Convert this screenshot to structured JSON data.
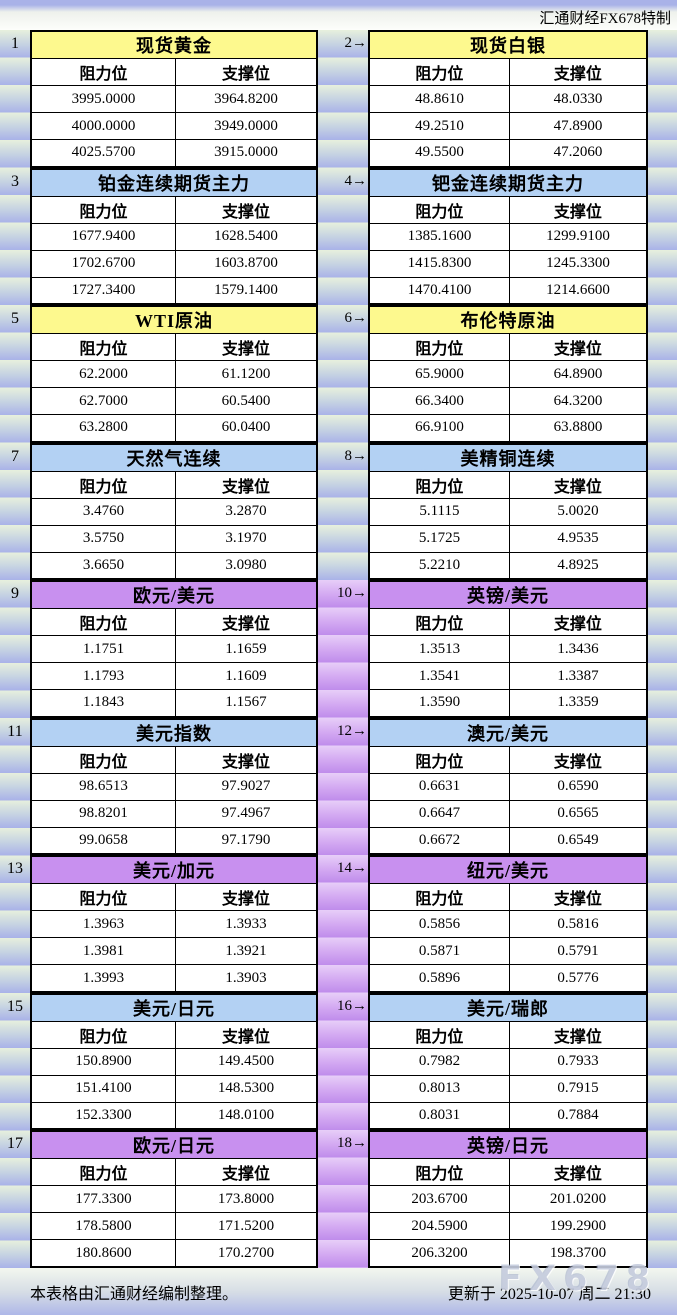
{
  "header": {
    "credit": "汇通财经FX678特制"
  },
  "table": {
    "resistance_header": "阻力位",
    "support_header": "支撑位",
    "themes": {
      "yellow": "#fdf98e",
      "blue": "#b3d1f3",
      "purple": "#c890ef"
    },
    "pairs": [
      {
        "gutter_theme": "blue",
        "left": {
          "num": "1",
          "title": "现货黄金",
          "theme": "yellow",
          "rows": [
            [
              "3995.0000",
              "3964.8200"
            ],
            [
              "4000.0000",
              "3949.0000"
            ],
            [
              "4025.5700",
              "3915.0000"
            ]
          ]
        },
        "right": {
          "num": "2→",
          "title": "现货白银",
          "theme": "yellow",
          "rows": [
            [
              "48.8610",
              "48.0330"
            ],
            [
              "49.2510",
              "47.8900"
            ],
            [
              "49.5500",
              "47.2060"
            ]
          ]
        }
      },
      {
        "gutter_theme": "blue",
        "left": {
          "num": "3",
          "title": "铂金连续期货主力",
          "theme": "blue",
          "rows": [
            [
              "1677.9400",
              "1628.5400"
            ],
            [
              "1702.6700",
              "1603.8700"
            ],
            [
              "1727.3400",
              "1579.1400"
            ]
          ]
        },
        "right": {
          "num": "4→",
          "title": "钯金连续期货主力",
          "theme": "blue",
          "rows": [
            [
              "1385.1600",
              "1299.9100"
            ],
            [
              "1415.8300",
              "1245.3300"
            ],
            [
              "1470.4100",
              "1214.6600"
            ]
          ]
        }
      },
      {
        "gutter_theme": "blue",
        "left": {
          "num": "5",
          "title": "WTI原油",
          "theme": "yellow",
          "rows": [
            [
              "62.2000",
              "61.1200"
            ],
            [
              "62.7000",
              "60.5400"
            ],
            [
              "63.2800",
              "60.0400"
            ]
          ]
        },
        "right": {
          "num": "6→",
          "title": "布伦特原油",
          "theme": "yellow",
          "rows": [
            [
              "65.9000",
              "64.8900"
            ],
            [
              "66.3400",
              "64.3200"
            ],
            [
              "66.9100",
              "63.8800"
            ]
          ]
        }
      },
      {
        "gutter_theme": "blue",
        "left": {
          "num": "7",
          "title": "天然气连续",
          "theme": "blue",
          "rows": [
            [
              "3.4760",
              "3.2870"
            ],
            [
              "3.5750",
              "3.1970"
            ],
            [
              "3.6650",
              "3.0980"
            ]
          ]
        },
        "right": {
          "num": "8→",
          "title": "美精铜连续",
          "theme": "blue",
          "rows": [
            [
              "5.1115",
              "5.0020"
            ],
            [
              "5.1725",
              "4.9535"
            ],
            [
              "5.2210",
              "4.8925"
            ]
          ]
        }
      },
      {
        "gutter_theme": "purple",
        "left": {
          "num": "9",
          "title": "欧元/美元",
          "theme": "purple",
          "rows": [
            [
              "1.1751",
              "1.1659"
            ],
            [
              "1.1793",
              "1.1609"
            ],
            [
              "1.1843",
              "1.1567"
            ]
          ]
        },
        "right": {
          "num": "10→",
          "title": "英镑/美元",
          "theme": "purple",
          "rows": [
            [
              "1.3513",
              "1.3436"
            ],
            [
              "1.3541",
              "1.3387"
            ],
            [
              "1.3590",
              "1.3359"
            ]
          ]
        }
      },
      {
        "gutter_theme": "purple",
        "left": {
          "num": "11",
          "title": "美元指数",
          "theme": "blue",
          "rows": [
            [
              "98.6513",
              "97.9027"
            ],
            [
              "98.8201",
              "97.4967"
            ],
            [
              "99.0658",
              "97.1790"
            ]
          ]
        },
        "right": {
          "num": "12→",
          "title": "澳元/美元",
          "theme": "blue",
          "rows": [
            [
              "0.6631",
              "0.6590"
            ],
            [
              "0.6647",
              "0.6565"
            ],
            [
              "0.6672",
              "0.6549"
            ]
          ]
        }
      },
      {
        "gutter_theme": "purple",
        "left": {
          "num": "13",
          "title": "美元/加元",
          "theme": "purple",
          "rows": [
            [
              "1.3963",
              "1.3933"
            ],
            [
              "1.3981",
              "1.3921"
            ],
            [
              "1.3993",
              "1.3903"
            ]
          ]
        },
        "right": {
          "num": "14→",
          "title": "纽元/美元",
          "theme": "purple",
          "rows": [
            [
              "0.5856",
              "0.5816"
            ],
            [
              "0.5871",
              "0.5791"
            ],
            [
              "0.5896",
              "0.5776"
            ]
          ]
        }
      },
      {
        "gutter_theme": "purple",
        "left": {
          "num": "15",
          "title": "美元/日元",
          "theme": "blue",
          "rows": [
            [
              "150.8900",
              "149.4500"
            ],
            [
              "151.4100",
              "148.5300"
            ],
            [
              "152.3300",
              "148.0100"
            ]
          ]
        },
        "right": {
          "num": "16→",
          "title": "美元/瑞郎",
          "theme": "blue",
          "rows": [
            [
              "0.7982",
              "0.7933"
            ],
            [
              "0.8013",
              "0.7915"
            ],
            [
              "0.8031",
              "0.7884"
            ]
          ]
        }
      },
      {
        "gutter_theme": "purple",
        "left": {
          "num": "17",
          "title": "欧元/日元",
          "theme": "purple",
          "rows": [
            [
              "177.3300",
              "173.8000"
            ],
            [
              "178.5800",
              "171.5200"
            ],
            [
              "180.8600",
              "170.2700"
            ]
          ]
        },
        "right": {
          "num": "18→",
          "title": "英镑/日元",
          "theme": "purple",
          "rows": [
            [
              "203.6700",
              "201.0200"
            ],
            [
              "204.5900",
              "199.2900"
            ],
            [
              "206.3200",
              "198.3700"
            ]
          ]
        }
      }
    ]
  },
  "footer": {
    "note": "本表格由汇通财经编制整理。",
    "updated": "更新于 2025-10-07 周二 21:30",
    "watermark": "FX678"
  },
  "chart_data": {
    "type": "table",
    "title": "汇通财经FX678特制 阻力位/支撑位速查表",
    "columns": [
      "阻力位",
      "支撑位"
    ],
    "updated": "2025-10-07 周二 21:30",
    "instruments": [
      {
        "no": 1,
        "name": "现货黄金",
        "resistance": [
          3995.0,
          4000.0,
          4025.57
        ],
        "support": [
          3964.82,
          3949.0,
          3915.0
        ]
      },
      {
        "no": 2,
        "name": "现货白银",
        "resistance": [
          48.861,
          49.251,
          49.55
        ],
        "support": [
          48.033,
          47.89,
          47.206
        ]
      },
      {
        "no": 3,
        "name": "铂金连续期货主力",
        "resistance": [
          1677.94,
          1702.67,
          1727.34
        ],
        "support": [
          1628.54,
          1603.87,
          1579.14
        ]
      },
      {
        "no": 4,
        "name": "钯金连续期货主力",
        "resistance": [
          1385.16,
          1415.83,
          1470.41
        ],
        "support": [
          1299.91,
          1245.33,
          1214.66
        ]
      },
      {
        "no": 5,
        "name": "WTI原油",
        "resistance": [
          62.2,
          62.7,
          63.28
        ],
        "support": [
          61.12,
          60.54,
          60.04
        ]
      },
      {
        "no": 6,
        "name": "布伦特原油",
        "resistance": [
          65.9,
          66.34,
          66.91
        ],
        "support": [
          64.89,
          64.32,
          63.88
        ]
      },
      {
        "no": 7,
        "name": "天然气连续",
        "resistance": [
          3.476,
          3.575,
          3.665
        ],
        "support": [
          3.287,
          3.197,
          3.098
        ]
      },
      {
        "no": 8,
        "name": "美精铜连续",
        "resistance": [
          5.1115,
          5.1725,
          5.221
        ],
        "support": [
          5.002,
          4.9535,
          4.8925
        ]
      },
      {
        "no": 9,
        "name": "欧元/美元",
        "resistance": [
          1.1751,
          1.1793,
          1.1843
        ],
        "support": [
          1.1659,
          1.1609,
          1.1567
        ]
      },
      {
        "no": 10,
        "name": "英镑/美元",
        "resistance": [
          1.3513,
          1.3541,
          1.359
        ],
        "support": [
          1.3436,
          1.3387,
          1.3359
        ]
      },
      {
        "no": 11,
        "name": "美元指数",
        "resistance": [
          98.6513,
          98.8201,
          99.0658
        ],
        "support": [
          97.9027,
          97.4967,
          97.179
        ]
      },
      {
        "no": 12,
        "name": "澳元/美元",
        "resistance": [
          0.6631,
          0.6647,
          0.6672
        ],
        "support": [
          0.659,
          0.6565,
          0.6549
        ]
      },
      {
        "no": 13,
        "name": "美元/加元",
        "resistance": [
          1.3963,
          1.3981,
          1.3993
        ],
        "support": [
          1.3933,
          1.3921,
          1.3903
        ]
      },
      {
        "no": 14,
        "name": "纽元/美元",
        "resistance": [
          0.5856,
          0.5871,
          0.5896
        ],
        "support": [
          0.5816,
          0.5791,
          0.5776
        ]
      },
      {
        "no": 15,
        "name": "美元/日元",
        "resistance": [
          150.89,
          151.41,
          152.33
        ],
        "support": [
          149.45,
          148.53,
          148.01
        ]
      },
      {
        "no": 16,
        "name": "美元/瑞郎",
        "resistance": [
          0.7982,
          0.8013,
          0.8031
        ],
        "support": [
          0.7933,
          0.7915,
          0.7884
        ]
      },
      {
        "no": 17,
        "name": "欧元/日元",
        "resistance": [
          177.33,
          178.58,
          180.86
        ],
        "support": [
          173.8,
          171.52,
          170.27
        ]
      },
      {
        "no": 18,
        "name": "英镑/日元",
        "resistance": [
          203.67,
          204.59,
          206.32
        ],
        "support": [
          201.02,
          199.29,
          198.37
        ]
      }
    ]
  }
}
